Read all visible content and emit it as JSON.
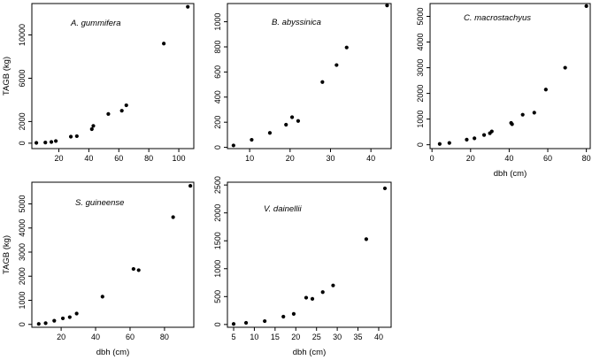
{
  "chart_data": [
    {
      "type": "scatter",
      "title": "A. gummifera",
      "xlabel": "",
      "ylabel": "TAGB (kg)",
      "xlim": [
        2,
        110
      ],
      "ylim": [
        -500,
        12900
      ],
      "xticks": [
        20,
        40,
        60,
        80,
        100
      ],
      "yticks": [
        0,
        2000,
        6000,
        10000
      ],
      "points": [
        [
          5,
          30
        ],
        [
          11,
          60
        ],
        [
          15,
          110
        ],
        [
          18,
          200
        ],
        [
          28,
          600
        ],
        [
          32,
          650
        ],
        [
          42,
          1300
        ],
        [
          43,
          1600
        ],
        [
          53,
          2700
        ],
        [
          62,
          3000
        ],
        [
          65,
          3500
        ],
        [
          90,
          9200
        ],
        [
          106,
          12600
        ]
      ]
    },
    {
      "type": "scatter",
      "title": "B. abyssinica",
      "xlabel": "",
      "ylabel": "",
      "xlim": [
        4.5,
        45
      ],
      "ylim": [
        -10,
        1145
      ],
      "xticks": [
        10,
        20,
        30,
        40
      ],
      "yticks": [
        0,
        200,
        400,
        600,
        800,
        1000
      ],
      "points": [
        [
          6,
          15
        ],
        [
          10.5,
          60
        ],
        [
          15,
          115
        ],
        [
          19,
          180
        ],
        [
          20.5,
          240
        ],
        [
          22,
          210
        ],
        [
          28,
          520
        ],
        [
          31.5,
          655
        ],
        [
          34,
          795
        ],
        [
          44,
          1130
        ]
      ]
    },
    {
      "type": "scatter",
      "title": "C. macrostachyus",
      "xlabel": "dbh (cm)",
      "ylabel": "",
      "xlim": [
        -1,
        82
      ],
      "ylim": [
        -150,
        5500
      ],
      "xticks": [
        0,
        20,
        40,
        60,
        80
      ],
      "yticks": [
        0,
        1000,
        2000,
        3000,
        4000,
        5000
      ],
      "points": [
        [
          4,
          30
        ],
        [
          9,
          70
        ],
        [
          18,
          200
        ],
        [
          22,
          250
        ],
        [
          27,
          380
        ],
        [
          30,
          450
        ],
        [
          31,
          520
        ],
        [
          41,
          850
        ],
        [
          41.5,
          800
        ],
        [
          47,
          1170
        ],
        [
          53,
          1250
        ],
        [
          59,
          2150
        ],
        [
          69,
          3000
        ],
        [
          80,
          5400
        ]
      ]
    },
    {
      "type": "scatter",
      "title": "S. guineense",
      "xlabel": "dbh (cm)",
      "ylabel": "TAGB (kg)",
      "xlim": [
        3,
        97
      ],
      "ylim": [
        -120,
        5900
      ],
      "xticks": [
        20,
        40,
        60,
        80
      ],
      "yticks": [
        0,
        1000,
        2000,
        3000,
        4000,
        5000
      ],
      "points": [
        [
          7,
          20
        ],
        [
          11,
          50
        ],
        [
          16,
          150
        ],
        [
          21,
          250
        ],
        [
          25,
          300
        ],
        [
          29,
          450
        ],
        [
          44,
          1150
        ],
        [
          62,
          2300
        ],
        [
          65,
          2250
        ],
        [
          85,
          4450
        ],
        [
          95,
          5750
        ]
      ]
    },
    {
      "type": "scatter",
      "title": "V. dainellii",
      "xlabel": "dbh (cm)",
      "ylabel": "",
      "xlim": [
        3.5,
        43
      ],
      "ylim": [
        -50,
        2550
      ],
      "xticks": [
        5,
        10,
        15,
        20,
        25,
        30,
        35,
        40
      ],
      "yticks": [
        0,
        500,
        1000,
        1500,
        2000,
        2500
      ],
      "points": [
        [
          5,
          10
        ],
        [
          8,
          30
        ],
        [
          12.5,
          60
        ],
        [
          17,
          140
        ],
        [
          19.5,
          190
        ],
        [
          22.5,
          480
        ],
        [
          24,
          460
        ],
        [
          26.5,
          580
        ],
        [
          29,
          700
        ],
        [
          37,
          1530
        ],
        [
          41.5,
          2440
        ]
      ]
    }
  ]
}
